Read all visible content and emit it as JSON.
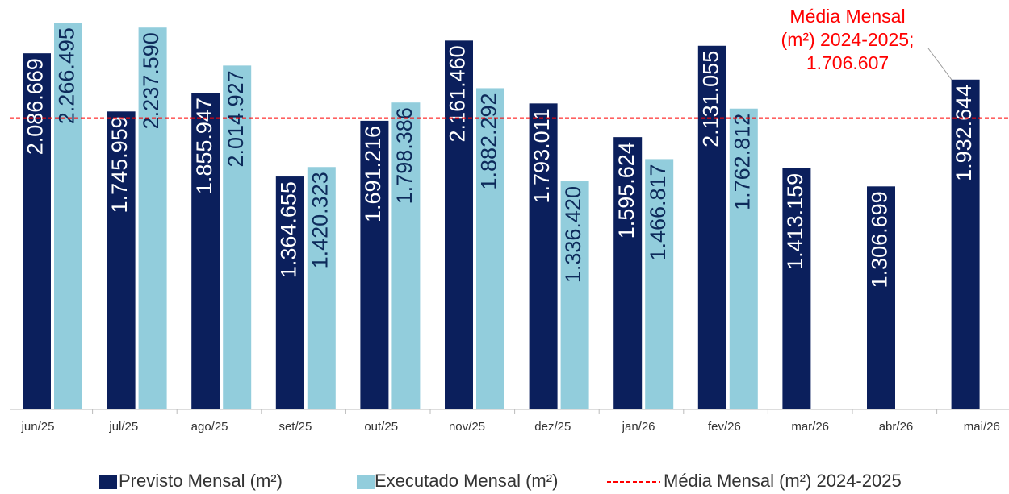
{
  "chart_data": {
    "type": "bar",
    "categories": [
      "jun/25",
      "jul/25",
      "ago/25",
      "set/25",
      "out/25",
      "nov/25",
      "dez/25",
      "jan/26",
      "fev/26",
      "mar/26",
      "abr/26",
      "mai/26"
    ],
    "series": [
      {
        "name": "Previsto Mensal (m²)",
        "color": "#0b1f5c",
        "label_color": "#ffffff",
        "values": [
          2086669,
          1745959,
          1855947,
          1364655,
          1691216,
          2161460,
          1793011,
          1595624,
          2131055,
          1413159,
          1306699,
          1932644
        ],
        "value_labels": [
          "2.086.669",
          "1.745.959",
          "1.855.947",
          "1.364.655",
          "1.691.216",
          "2.161.460",
          "1.793.011",
          "1.595.624",
          "2.131.055",
          "1.413.159",
          "1.306.699",
          "1.932.644"
        ]
      },
      {
        "name": "Executado Mensal (m²)",
        "color": "#92cddc",
        "label_color": "#0d2a5a",
        "values": [
          2266495,
          2237590,
          2014927,
          1420323,
          1798386,
          1882292,
          1336420,
          1466817,
          1762812,
          null,
          null,
          null
        ],
        "value_labels": [
          "2.266.495",
          "2.237.590",
          "2.014.927",
          "1.420.323",
          "1.798.386",
          "1.882.292",
          "1.336.420",
          "1.466.817",
          "1.762.812",
          null,
          null,
          null
        ]
      }
    ],
    "reference_line": {
      "name": "Média Mensal (m²) 2024-2025",
      "value": 1706607,
      "color": "#ff0000",
      "annotation": [
        "Média Mensal",
        "(m²) 2024-2025;",
        "1.706.607"
      ]
    },
    "ylim": [
      0,
      2300000
    ]
  }
}
